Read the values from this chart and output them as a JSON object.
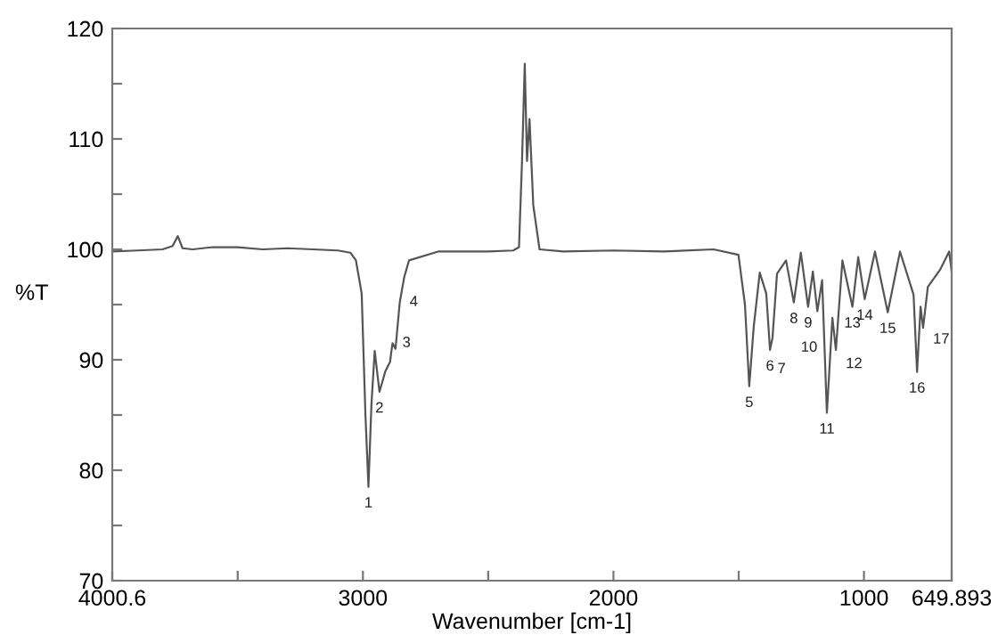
{
  "chart_data": {
    "type": "line",
    "xlabel": "Wavenumber [cm-1]",
    "ylabel": "%T",
    "xlim": [
      4000.6,
      649.893
    ],
    "ylim": [
      70,
      120
    ],
    "xticks": [
      {
        "value": 4000.6,
        "label": "4000.6"
      },
      {
        "value": 3500,
        "label": null
      },
      3000,
      {
        "value": 2500,
        "label": null
      },
      2000,
      {
        "value": 1500,
        "label": null
      },
      1000,
      {
        "value": 649.893,
        "label": "649.893"
      }
    ],
    "yticks": [
      70,
      {
        "value": 75,
        "label": null
      },
      80,
      {
        "value": 85,
        "label": null
      },
      90,
      {
        "value": 95,
        "label": null
      },
      100,
      {
        "value": 105,
        "label": null
      },
      110,
      {
        "value": 115,
        "label": null
      },
      120
    ],
    "grid": false,
    "legend": false,
    "marker": "none",
    "line_style": "solid",
    "series": [
      {
        "color": "#555555",
        "x": [
          4000.6,
          3900,
          3800,
          3760,
          3739,
          3720,
          3680,
          3600,
          3500,
          3400,
          3300,
          3200,
          3100,
          3050,
          3028,
          3005,
          2990,
          2978,
          2966,
          2953,
          2934,
          2910,
          2892,
          2882,
          2870,
          2853,
          2835,
          2816,
          2700,
          2500,
          2400,
          2377,
          2365,
          2354,
          2345,
          2335,
          2320,
          2295,
          2200,
          2000,
          1800,
          1600,
          1501,
          1475,
          1458,
          1440,
          1416,
          1390,
          1375,
          1365,
          1347,
          1311,
          1280,
          1252,
          1223,
          1204,
          1186,
          1167,
          1148,
          1126,
          1112,
          1086,
          1046,
          1023,
          997,
          956,
          905,
          856,
          802,
          788,
          774,
          764,
          745,
          695,
          660,
          649.893
        ],
        "values": [
          99.8,
          99.9,
          100.0,
          100.3,
          101.2,
          100.1,
          100.0,
          100.2,
          100.2,
          100.0,
          100.1,
          100.0,
          99.9,
          99.7,
          99.0,
          96.0,
          85.0,
          78.5,
          86.0,
          90.8,
          87.1,
          89.0,
          89.8,
          91.5,
          91.0,
          95.2,
          97.5,
          99.0,
          99.8,
          99.8,
          99.9,
          100.2,
          108.0,
          116.8,
          108.0,
          111.8,
          104.0,
          100.0,
          99.8,
          99.9,
          99.8,
          100.0,
          99.5,
          95.0,
          87.6,
          93.0,
          97.9,
          96.0,
          90.9,
          92.0,
          97.8,
          99.0,
          95.2,
          99.7,
          94.8,
          98.0,
          94.4,
          97.2,
          85.2,
          93.8,
          90.9,
          99.0,
          94.8,
          99.3,
          95.5,
          99.8,
          94.3,
          99.8,
          95.9,
          88.9,
          94.8,
          92.9,
          96.6,
          98.2,
          99.8,
          98.0
        ]
      }
    ],
    "annotations": [
      {
        "text": "1",
        "x": 2978,
        "y": 78.5
      },
      {
        "text": "2",
        "x": 2934,
        "y": 87.1
      },
      {
        "text": "3",
        "x": 2882,
        "y": 91.5
      },
      {
        "text": "4",
        "x": 2853,
        "y": 95.2
      },
      {
        "text": "5",
        "x": 1458,
        "y": 87.6
      },
      {
        "text": "6",
        "x": 1375,
        "y": 90.9
      },
      {
        "text": "7",
        "x": 1365,
        "y": 92.0
      },
      {
        "text": "8",
        "x": 1280,
        "y": 95.2
      },
      {
        "text": "9",
        "x": 1223,
        "y": 94.8
      },
      {
        "text": "10",
        "x": 1186,
        "y": 94.4
      },
      {
        "text": "11",
        "x": 1148,
        "y": 85.2
      },
      {
        "text": "12",
        "x": 1112,
        "y": 90.9
      },
      {
        "text": "13",
        "x": 1046,
        "y": 94.8
      },
      {
        "text": "14",
        "x": 997,
        "y": 95.5
      },
      {
        "text": "15",
        "x": 905,
        "y": 94.3
      },
      {
        "text": "16",
        "x": 788,
        "y": 88.9
      },
      {
        "text": "17",
        "x": 764,
        "y": 92.9
      }
    ]
  }
}
